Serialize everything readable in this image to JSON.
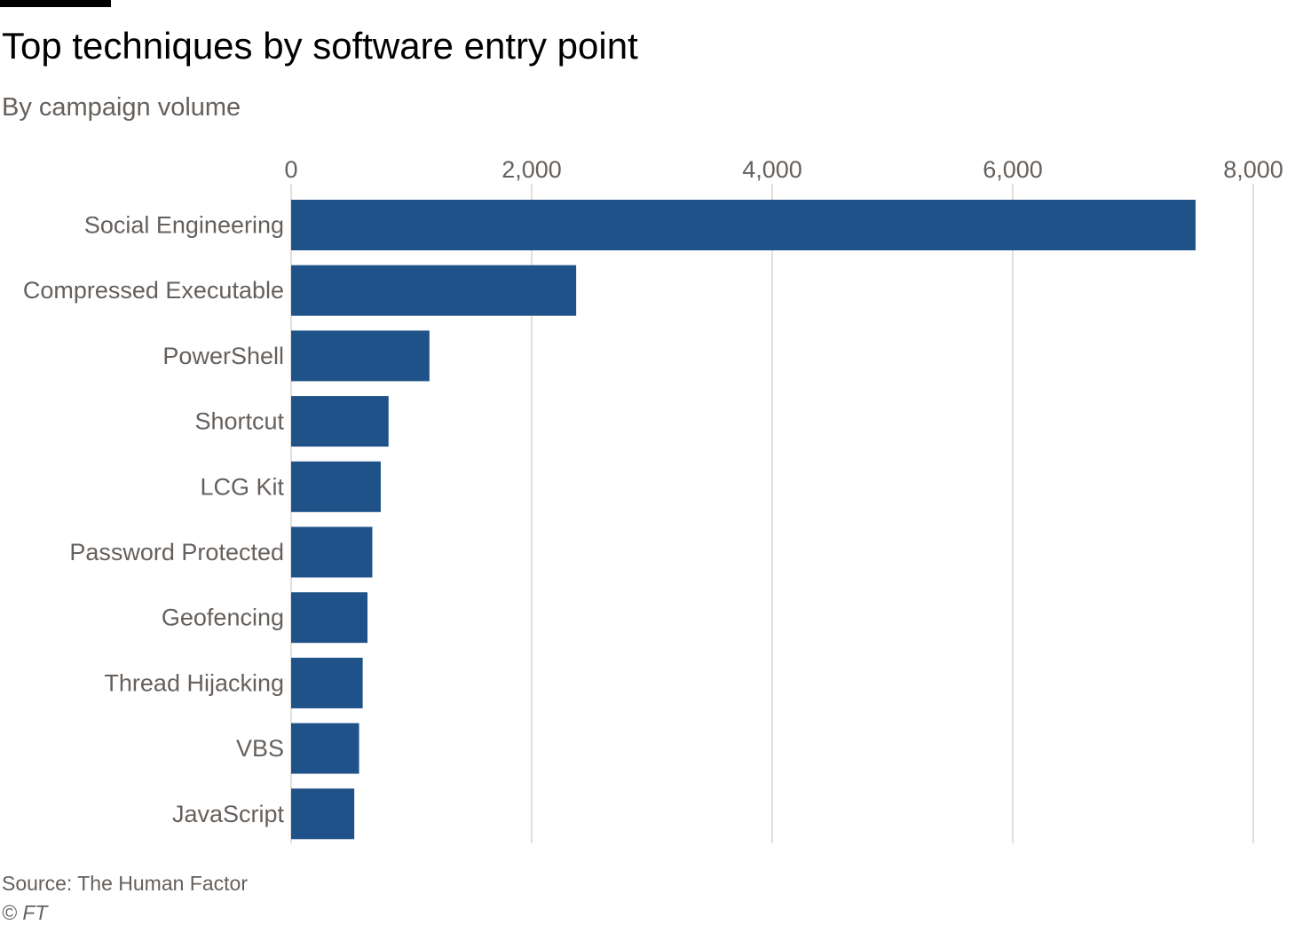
{
  "title": "Top techniques by software entry point",
  "subtitle": "By campaign volume",
  "source": "Source: The Human Factor",
  "copyright": "© FT",
  "colors": {
    "bar": "#1f5288",
    "gridline": "#e6ded6",
    "label": "#66605c",
    "title": "#000000"
  },
  "chart_data": {
    "type": "bar",
    "orientation": "horizontal",
    "categories": [
      "Social Engineering",
      "Compressed Executable",
      "PowerShell",
      "Shortcut",
      "LCG Kit",
      "Password Protected",
      "Geofencing",
      "Thread Hijacking",
      "VBS",
      "JavaScript"
    ],
    "values": [
      7520,
      2370,
      1150,
      810,
      745,
      675,
      635,
      595,
      565,
      525
    ],
    "xlim": [
      0,
      8000
    ],
    "x_ticks": [
      0,
      2000,
      4000,
      6000,
      8000
    ],
    "x_tick_labels": [
      "0",
      "2,000",
      "4,000",
      "6,000",
      "8,000"
    ],
    "axis_position": "top",
    "grid": true
  }
}
